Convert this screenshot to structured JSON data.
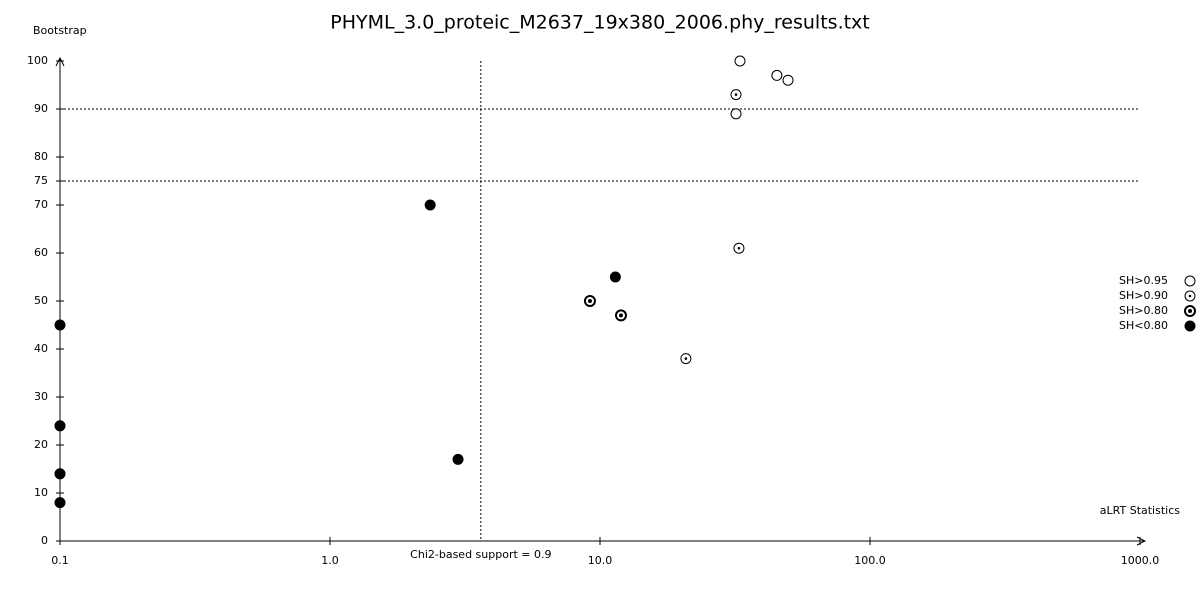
{
  "chart_data": {
    "type": "scatter",
    "title": "PHYML_3.0_proteic_M2637_19x380_2006.phy_results.txt",
    "ylabel": "Bootstrap",
    "xlabel": "aLRT Statistics",
    "xscale": "log",
    "xlim": [
      0.1,
      1000
    ],
    "xticks": [
      0.1,
      {
        "value": 1,
        "label": "1.0"
      },
      {
        "value": 10,
        "label": "10.0"
      },
      {
        "value": 100,
        "label": "100.0"
      },
      {
        "value": 1000,
        "label": "1000.0"
      }
    ],
    "ylim": [
      0,
      100
    ],
    "yticks": [
      0,
      10,
      20,
      30,
      40,
      50,
      60,
      70,
      75,
      80,
      90,
      100
    ],
    "hlines": [
      75,
      90
    ],
    "vline": {
      "value": 3.62,
      "label": "Chi2-based support = 0.9"
    },
    "legend": "right",
    "series": [
      {
        "name": "SH>0.95",
        "color": "#000000",
        "marker": "open",
        "x": [
          33.0,
          45.2,
          49.7,
          31.9
        ],
        "values": [
          100,
          97,
          96,
          89
        ]
      },
      {
        "name": "SH>0.90",
        "color": "#000000",
        "marker": "dot",
        "x": [
          31.9,
          32.7,
          20.8
        ],
        "values": [
          93,
          61,
          38
        ]
      },
      {
        "name": "SH>0.80",
        "color": "#000000",
        "marker": "ring",
        "x": [
          9.18,
          11.96
        ],
        "values": [
          50,
          47
        ]
      },
      {
        "name": "SH<0.80",
        "color": "#000000",
        "marker": "filled",
        "x": [
          2.35,
          11.4,
          2.98,
          0.1,
          0.1,
          0.1,
          0.1
        ],
        "values": [
          70,
          55,
          17,
          45,
          24,
          14,
          8
        ]
      }
    ]
  }
}
